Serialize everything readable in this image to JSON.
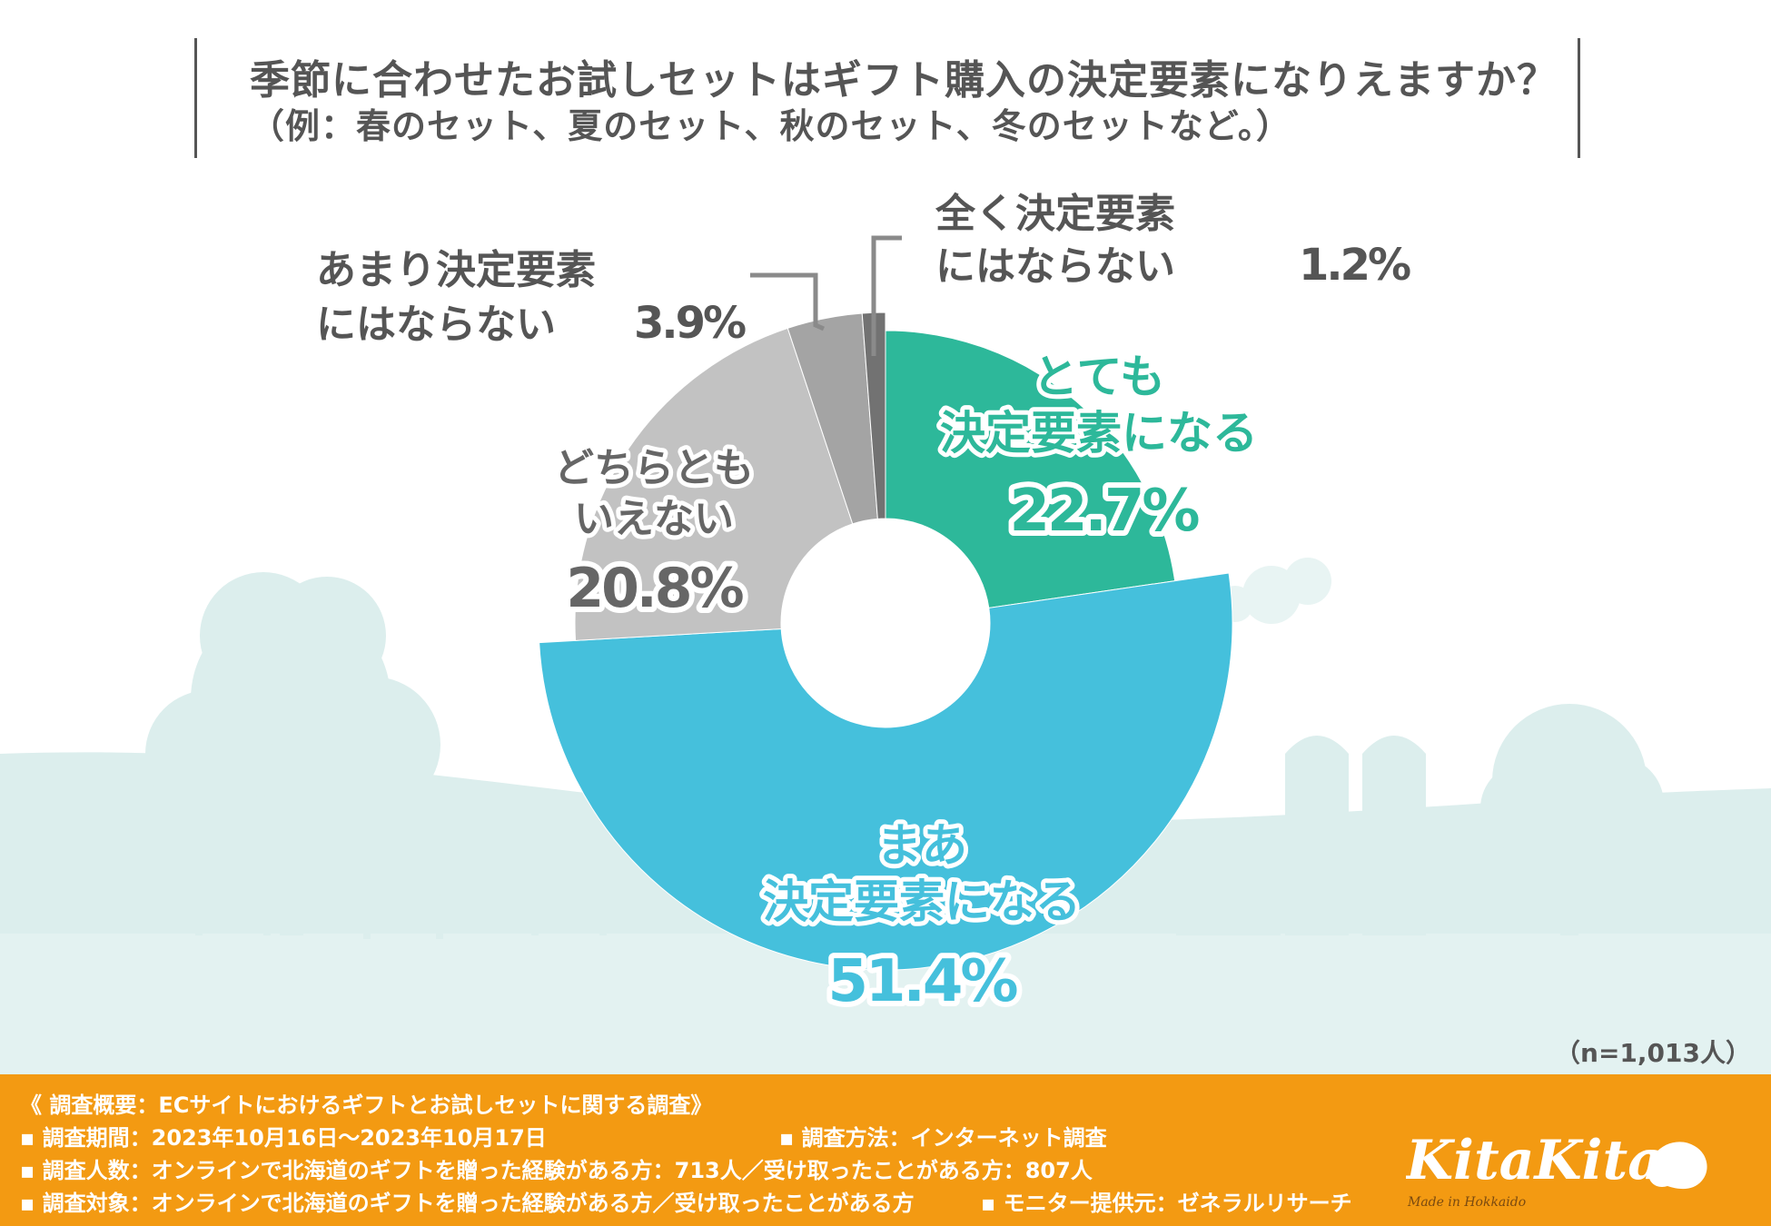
{
  "title": {
    "line1": "季節に合わせたお試しセットはギフト購入の決定要素になりえますか？",
    "line2": "（例：春のセット、夏のセット、秋のセット、冬のセットなど。）"
  },
  "sample_size": "（n=1,013人）",
  "colors": {
    "very": "#2db89a",
    "somewhat": "#45c0dc",
    "neither": "#c2c2c2",
    "not_much": "#a4a4a4",
    "not_at_all": "#727272",
    "footer": "#f39a12",
    "background_silhouette": "#d9eeed"
  },
  "chart_data": {
    "type": "pie",
    "title": "季節に合わせたお試しセットはギフト購入の決定要素になりえますか？",
    "unit": "%",
    "categories": [
      "とても決定要素になる",
      "まあ決定要素になる",
      "どちらともいえない",
      "あまり決定要素にはならない",
      "全く決定要素にはならない"
    ],
    "values": [
      22.7,
      51.4,
      20.8,
      3.9,
      1.2
    ],
    "labels": [
      {
        "lines": [
          "とても",
          "決定要素になる"
        ],
        "value": "22.7%"
      },
      {
        "lines": [
          "まあ",
          "決定要素になる"
        ],
        "value": "51.4%"
      },
      {
        "lines": [
          "どちらとも",
          "いえない"
        ],
        "value": "20.8%"
      },
      {
        "lines": [
          "あまり決定要素",
          "にはならない"
        ],
        "value": "3.9%"
      },
      {
        "lines": [
          "全く決定要素",
          "にはならない"
        ],
        "value": "1.2%"
      }
    ],
    "legend": "none",
    "grid": false
  },
  "footer": {
    "summary": "《 調査概要：ECサイトにおけるギフトとお試しセットに関する調査》",
    "period": "▪ 調査期間：2023年10月16日～2023年10月17日",
    "method": "▪ 調査方法：インターネット調査",
    "respondents": "▪ 調査人数：オンラインで北海道のギフトを贈った経験がある方：713人／受け取ったことがある方：807人",
    "target": "▪ 調査対象：オンラインで北海道のギフトを贈った経験がある方／受け取ったことがある方",
    "provider": "▪ モニター提供元：ゼネラルリサーチ"
  },
  "logo": {
    "name": "KitaKita",
    "tagline": "Made in Hokkaido"
  }
}
